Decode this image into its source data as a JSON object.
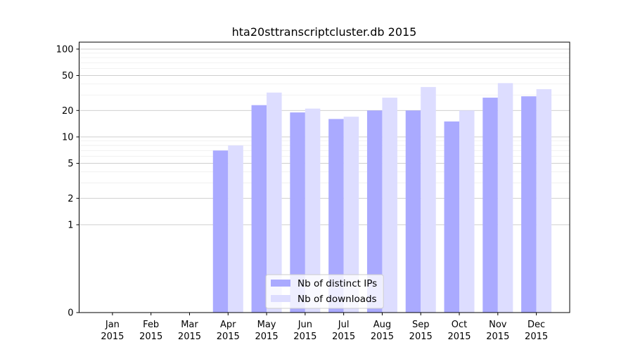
{
  "chart_data": {
    "type": "bar",
    "title": "hta20sttranscriptcluster.db 2015",
    "xlabel": "",
    "ylabel": "",
    "yscale": "symlog",
    "ylim": [
      0,
      120
    ],
    "grid": "horizontal",
    "legend_position": "bottom-center",
    "categories": [
      [
        "Jan",
        "2015"
      ],
      [
        "Feb",
        "2015"
      ],
      [
        "Mar",
        "2015"
      ],
      [
        "Apr",
        "2015"
      ],
      [
        "May",
        "2015"
      ],
      [
        "Jun",
        "2015"
      ],
      [
        "Jul",
        "2015"
      ],
      [
        "Aug",
        "2015"
      ],
      [
        "Sep",
        "2015"
      ],
      [
        "Oct",
        "2015"
      ],
      [
        "Nov",
        "2015"
      ],
      [
        "Dec",
        "2015"
      ]
    ],
    "y_ticks": [
      0,
      1,
      2,
      5,
      10,
      20,
      50,
      100
    ],
    "y_tick_labels": [
      "0",
      "1",
      "2",
      "5",
      "10",
      "20",
      "50",
      "100"
    ],
    "series": [
      {
        "name": "Nb of distinct IPs",
        "color": "#aaaaff",
        "values": [
          0,
          0,
          0,
          7,
          23,
          19,
          16,
          20,
          20,
          15,
          28,
          29
        ]
      },
      {
        "name": "Nb of downloads",
        "color": "#ddddff",
        "values": [
          0,
          0,
          0,
          8,
          32,
          21,
          17,
          28,
          37,
          20,
          41,
          35
        ]
      }
    ]
  }
}
